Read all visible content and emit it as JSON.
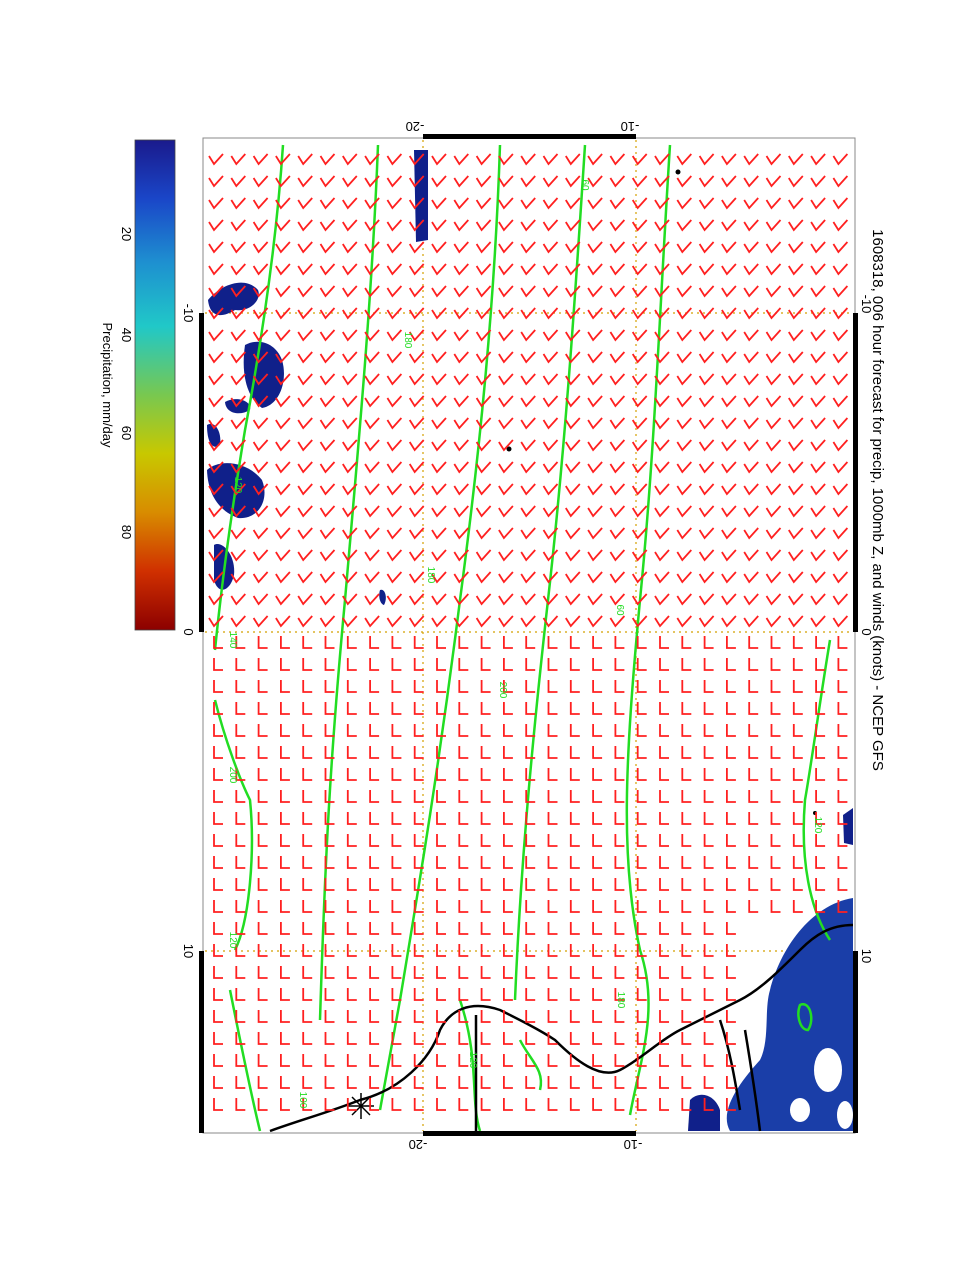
{
  "title": "1608318, 006 hour forecast for precip, 1000mb Z, and winds (knots) - NCEP GFS",
  "axes": {
    "top_ticks": [
      "-20",
      "-10"
    ],
    "bottom_ticks": [
      "-20",
      "-10"
    ],
    "left_ticks": [
      "-10",
      "0",
      "10"
    ],
    "right_ticks": [
      "-10",
      "0",
      "10"
    ]
  },
  "colorbar": {
    "label": "Precipitation, mm/day",
    "ticks": [
      "20",
      "40",
      "60",
      "80"
    ],
    "colors": [
      "#1a1a8c",
      "#1a46c8",
      "#1e90d0",
      "#20c8c8",
      "#78c850",
      "#c8c800",
      "#d88c00",
      "#d03000",
      "#8c0000"
    ]
  },
  "contour_labels": [
    "60",
    "120",
    "180",
    "200",
    "60",
    "180",
    "200",
    "120",
    "180",
    "120",
    "120",
    "100",
    "140"
  ],
  "colors": {
    "contours": "#22dd22",
    "wind_barbs": "#ff2020",
    "grid": "#d4a000",
    "coast": "#000000",
    "precip": "#10208a"
  },
  "chart_data": {
    "type": "map",
    "fields": [
      "precipitation (mm/day)",
      "1000mb geopotential height",
      "wind barbs (knots)"
    ],
    "precip_colorbar_range": [
      0,
      100
    ],
    "grid": true,
    "colorbar_position": "left"
  }
}
